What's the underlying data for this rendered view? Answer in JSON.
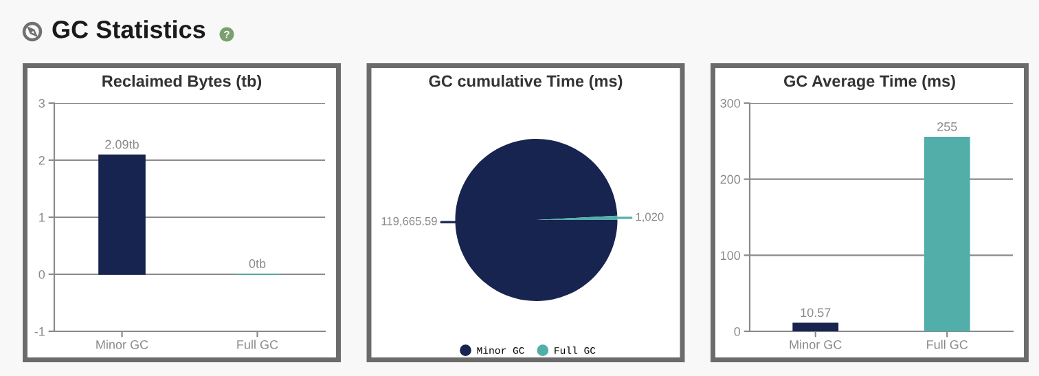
{
  "chart_data": [
    {
      "type": "other",
      "title": "GC Statistics"
    },
    {
      "type": "bar",
      "title": "Reclaimed Bytes (tb)",
      "categories": [
        "Minor GC",
        "Full GC"
      ],
      "values": [
        2.09,
        0
      ],
      "colors": [
        "#17244f",
        "#52aea9"
      ],
      "value_labels": [
        "2.09tb",
        "0tb"
      ],
      "ylim": [
        -1,
        3
      ],
      "yticks": [
        -1,
        0,
        1,
        2,
        3
      ],
      "grid": "y"
    },
    {
      "type": "pie",
      "title": "GC cumulative Time (ms)",
      "categories": [
        "Minor GC",
        "Full GC"
      ],
      "values": [
        119665.59,
        1020
      ],
      "colors": [
        "#17244f",
        "#52aea9"
      ],
      "value_labels": [
        "119,665.59",
        "1,020"
      ],
      "legend": "bottom"
    },
    {
      "type": "bar",
      "title": "GC Average Time (ms)",
      "categories": [
        "Minor GC",
        "Full GC"
      ],
      "values": [
        10.57,
        255
      ],
      "colors": [
        "#17244f",
        "#52aea9"
      ],
      "data_labels": true,
      "ylim": [
        0,
        300
      ],
      "yticks": [
        0,
        100,
        200,
        300
      ],
      "grid": "y"
    }
  ]
}
